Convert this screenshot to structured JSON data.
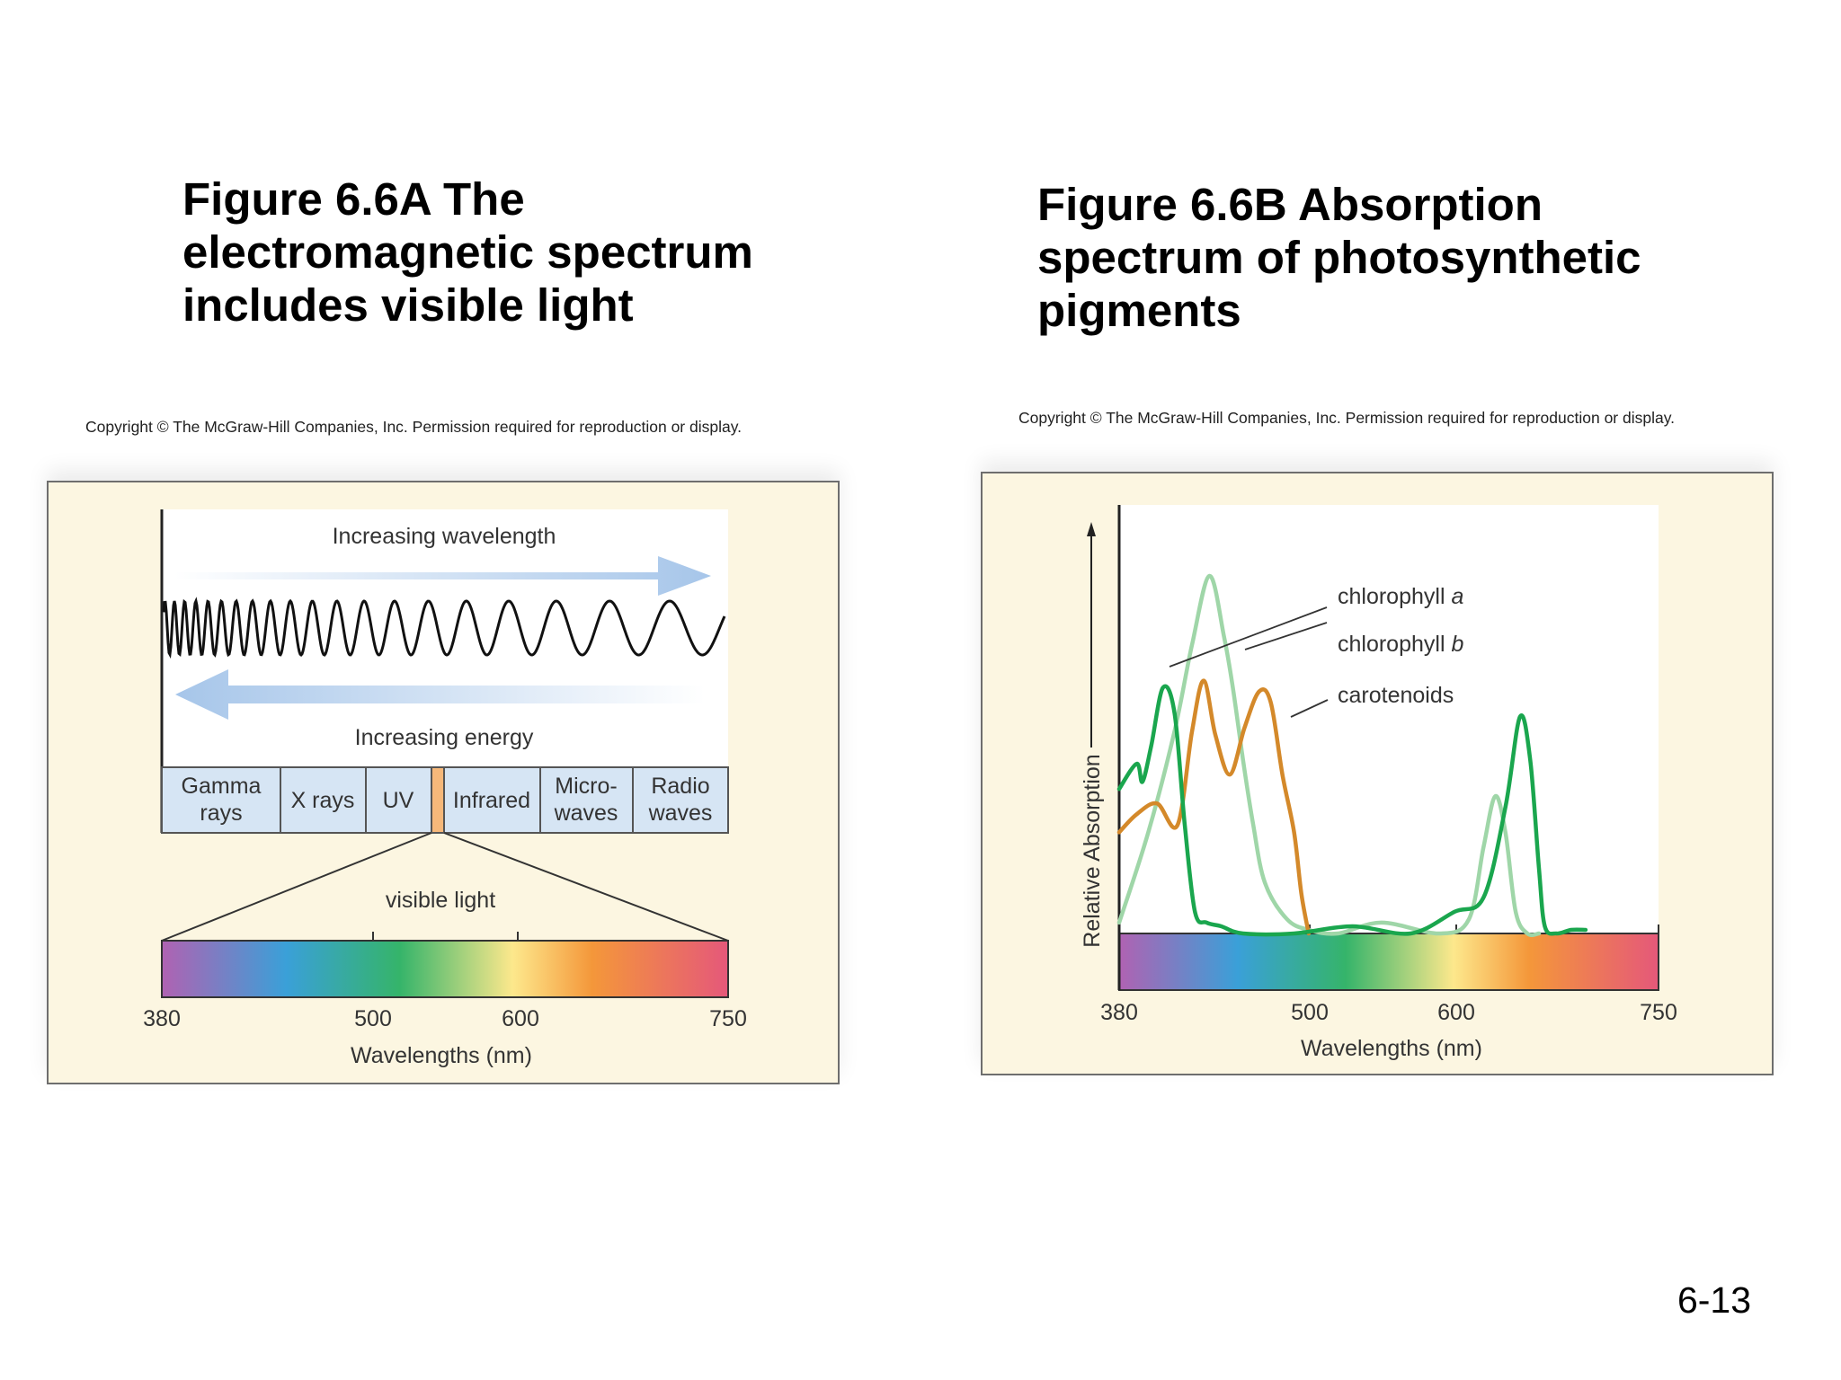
{
  "slide_number": "6-13",
  "figure_a": {
    "title_lines": [
      "Figure 6.6A The",
      "electromagnetic spectrum",
      "includes visible light"
    ],
    "copyright": "Copyright © The McGraw-Hill Companies, Inc. Permission required for reproduction or display.",
    "wavelength_arrow_label": "Increasing wavelength",
    "energy_arrow_label": "Increasing energy",
    "bands": [
      {
        "line1": "Gamma",
        "line2": "rays"
      },
      {
        "line1": "X rays",
        "line2": ""
      },
      {
        "line1": "UV",
        "line2": ""
      },
      {
        "line1": "",
        "line2": ""
      },
      {
        "line1": "Infrared",
        "line2": ""
      },
      {
        "line1": "Micro-",
        "line2": "waves"
      },
      {
        "line1": "Radio",
        "line2": "waves"
      }
    ],
    "visible_label": "visible light",
    "axis_ticks": [
      "380",
      "500",
      "600",
      "750"
    ],
    "xlabel": "Wavelengths (nm)"
  },
  "figure_b": {
    "title_lines": [
      "Figure 6.6B Absorption",
      "spectrum of photosynthetic",
      "pigments"
    ],
    "copyright": "Copyright © The McGraw-Hill Companies, Inc. Permission required for reproduction or display.",
    "ylabel": "Relative Absorption",
    "xlabel": "Wavelengths (nm)",
    "axis_ticks": [
      "380",
      "500",
      "600",
      "750"
    ],
    "legend": [
      {
        "base": "chlorophyll ",
        "italic": "a",
        "color": "#1aa64e"
      },
      {
        "base": "chlorophyll ",
        "italic": "b",
        "color": "#9fd6a8"
      },
      {
        "base": "carotenoids",
        "italic": "",
        "color": "#d4892a"
      }
    ]
  },
  "chart_data": {
    "type": "line",
    "title": "",
    "xlabel": "Wavelengths (nm)",
    "ylabel": "Relative Absorption",
    "xlim": [
      380,
      750
    ],
    "ylim": [
      0,
      1
    ],
    "grid": false,
    "legend_position": "top-right",
    "series": [
      {
        "name": "chlorophyll a",
        "color": "#1aa64e",
        "x": [
          380,
          392,
          396,
          402,
          410,
          418,
          425,
          432,
          440,
          450,
          465,
          500,
          540,
          580,
          610,
          630,
          645,
          655,
          662,
          668,
          672,
          680,
          690,
          700
        ],
        "y": [
          0.4,
          0.47,
          0.42,
          0.52,
          0.68,
          0.61,
          0.3,
          0.06,
          0.03,
          0.02,
          0.0,
          0.0,
          0.02,
          0.0,
          0.06,
          0.1,
          0.35,
          0.6,
          0.48,
          0.18,
          0.02,
          0.0,
          0.01,
          0.01
        ]
      },
      {
        "name": "chlorophyll b",
        "color": "#9fd6a8",
        "x": [
          380,
          400,
          418,
          430,
          442,
          452,
          458,
          465,
          472,
          480,
          495,
          510,
          530,
          560,
          600,
          620,
          630,
          638,
          645,
          652,
          660,
          668
        ],
        "y": [
          0.03,
          0.28,
          0.56,
          0.8,
          0.99,
          0.82,
          0.68,
          0.48,
          0.3,
          0.14,
          0.04,
          0.01,
          0.0,
          0.03,
          0.0,
          0.04,
          0.24,
          0.38,
          0.28,
          0.06,
          0.0,
          0.0
        ]
      },
      {
        "name": "carotenoids",
        "color": "#d4892a",
        "x": [
          380,
          392,
          406,
          420,
          430,
          438,
          446,
          456,
          466,
          476,
          484,
          492,
          500,
          505,
          510
        ],
        "y": [
          0.28,
          0.33,
          0.36,
          0.3,
          0.56,
          0.7,
          0.55,
          0.44,
          0.57,
          0.67,
          0.64,
          0.44,
          0.28,
          0.11,
          0.0
        ]
      }
    ]
  }
}
